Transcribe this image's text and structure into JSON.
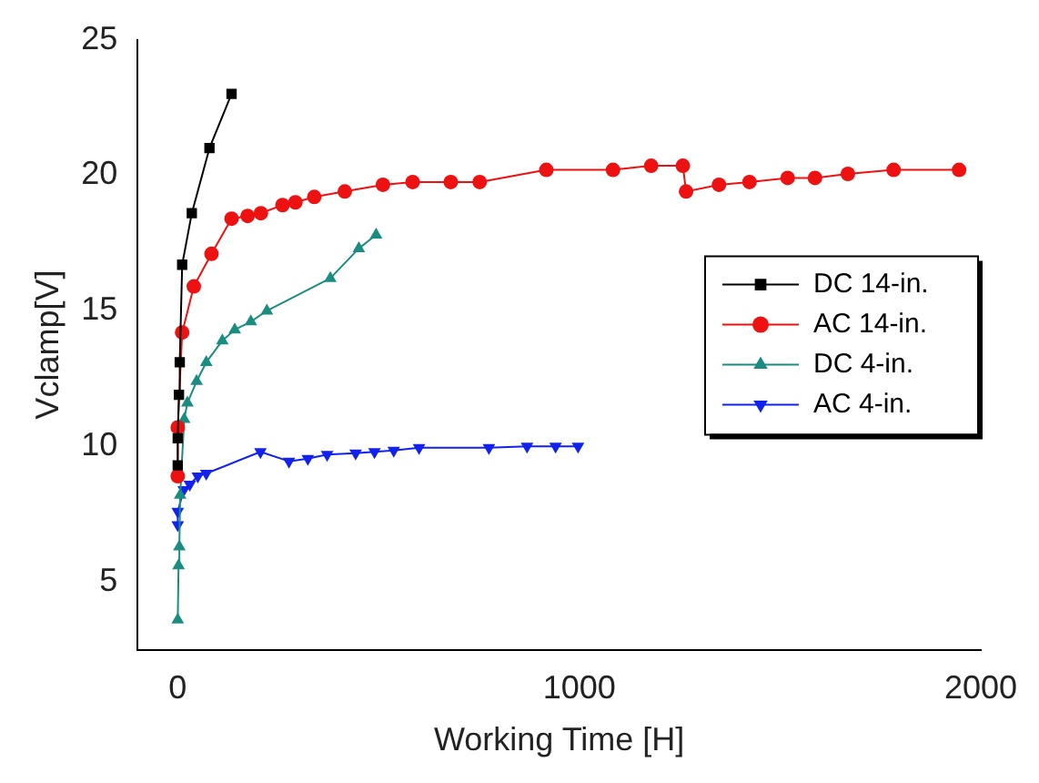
{
  "chart_data": {
    "type": "line",
    "xlabel": "Working Time [H]",
    "ylabel": "Vclamp[V]",
    "xlim": [
      -100,
      2000
    ],
    "xticks": [
      0,
      1000,
      2000
    ],
    "ylim": [
      2.5,
      25
    ],
    "yticks": [
      5,
      10,
      15,
      20,
      25
    ],
    "grid": false,
    "legend": "right",
    "line_style": "solid",
    "series": [
      {
        "name": "DC 14-in.",
        "color": "#000000",
        "marker": "square",
        "x": [
          0,
          0,
          3,
          5,
          11,
          35,
          79,
          134
        ],
        "values": [
          9.3,
          10.3,
          11.9,
          13.1,
          16.7,
          18.6,
          21.0,
          23.0
        ]
      },
      {
        "name": "AC 14-in.",
        "color": "#ee1111",
        "marker": "circle",
        "x": [
          0,
          0,
          11,
          40,
          84,
          134,
          174,
          207,
          261,
          293,
          340,
          416,
          511,
          585,
          680,
          752,
          918,
          1084,
          1179,
          1258,
          1266,
          1348,
          1424,
          1519,
          1587,
          1669,
          1783,
          1946
        ],
        "values": [
          8.9,
          10.7,
          14.2,
          15.9,
          17.1,
          18.4,
          18.5,
          18.6,
          18.9,
          19.0,
          19.2,
          19.4,
          19.65,
          19.75,
          19.75,
          19.75,
          20.2,
          20.2,
          20.35,
          20.35,
          19.4,
          19.65,
          19.75,
          19.9,
          19.9,
          20.05,
          20.2,
          20.2
        ]
      },
      {
        "name": "DC 4-in.",
        "color": "#1a8c80",
        "marker": "triangle",
        "x": [
          0,
          2,
          4,
          6,
          16,
          24,
          47,
          71,
          111,
          142,
          182,
          222,
          380,
          451,
          494
        ],
        "values": [
          3.6,
          5.6,
          6.3,
          8.2,
          11.0,
          11.6,
          12.4,
          13.1,
          13.9,
          14.3,
          14.6,
          15.0,
          16.2,
          17.3,
          17.8
        ]
      },
      {
        "name": "AC 4-in.",
        "color": "#1122ee",
        "marker": "triangle-down",
        "x": [
          0,
          0,
          15,
          30,
          50,
          71,
          206,
          277,
          324,
          372,
          443,
          490,
          538,
          601,
          775,
          870,
          941,
          997
        ],
        "values": [
          7.1,
          7.6,
          8.4,
          8.6,
          8.9,
          9.0,
          9.8,
          9.45,
          9.55,
          9.7,
          9.75,
          9.8,
          9.85,
          9.95,
          9.95,
          10.0,
          10.0,
          10.0
        ]
      }
    ]
  }
}
